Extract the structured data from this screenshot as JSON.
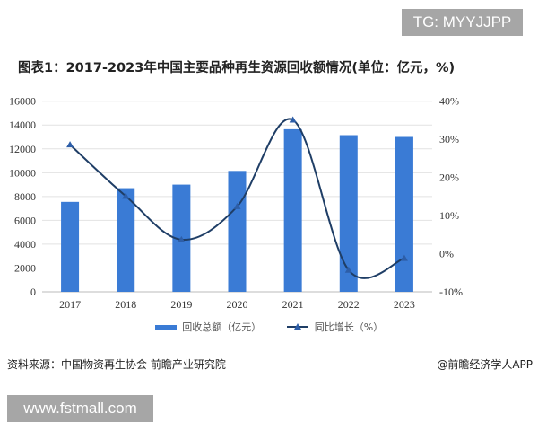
{
  "watermark_top": "TG: MYYJJPP",
  "watermark_bottom": "www.fstmall.com",
  "source": "资料来源：中国物资再生协会 前瞻产业研究院",
  "credit": "@前瞻经济学人APP",
  "chart_data": {
    "type": "bar+line",
    "title": "图表1：2017-2023年中国主要品种再生资源回收额情况(单位：亿元，%)",
    "categories": [
      "2017",
      "2018",
      "2019",
      "2020",
      "2021",
      "2022",
      "2023"
    ],
    "series": [
      {
        "name": "回收总额（亿元）",
        "type": "bar",
        "axis": "left",
        "color": "#3a7bd5",
        "values": [
          7550,
          8700,
          9000,
          10150,
          13650,
          13150,
          13000
        ]
      },
      {
        "name": "同比增长（%）",
        "type": "line",
        "axis": "right",
        "color": "#1f3e66",
        "marker": "triangle",
        "values": [
          28.6,
          15.1,
          3.7,
          12.4,
          35.1,
          -4.3,
          -1.2
        ]
      }
    ],
    "left_axis": {
      "range": [
        0,
        16000
      ],
      "ticks": [
        "0",
        "2000",
        "4000",
        "6000",
        "8000",
        "10000",
        "12000",
        "14000",
        "16000"
      ]
    },
    "right_axis": {
      "range": [
        -10,
        40
      ],
      "ticks": [
        "-10%",
        "0%",
        "10%",
        "20%",
        "30%",
        "40%"
      ]
    },
    "grid": true,
    "legend_position": "bottom"
  }
}
